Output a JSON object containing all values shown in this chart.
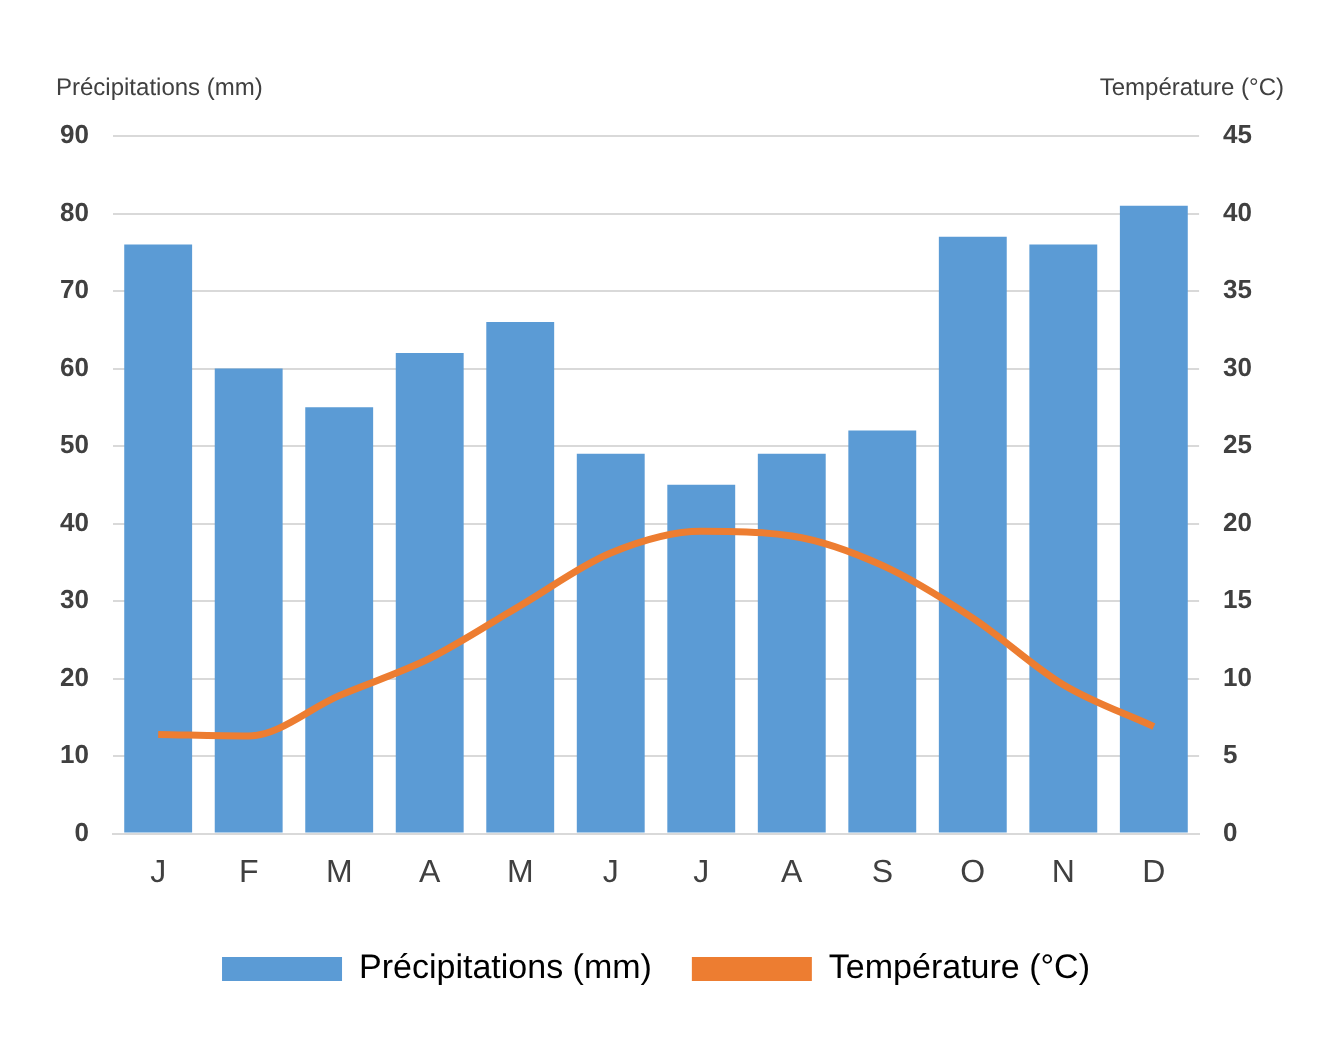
{
  "chart_data": {
    "type": "bar",
    "categories": [
      "J",
      "F",
      "M",
      "A",
      "M",
      "J",
      "J",
      "A",
      "S",
      "O",
      "N",
      "D"
    ],
    "ylabel": "Précipitations (mm)",
    "y2label": "Température (°C)",
    "series": [
      {
        "name": "Précipitations (mm)",
        "color": "#5b9bd5",
        "values": [
          76,
          60,
          55,
          62,
          66,
          49,
          45,
          49,
          52,
          77,
          76,
          81
        ]
      },
      {
        "name": "Température (°C)",
        "type": "line",
        "axis": "y2",
        "color": "#ed7d31",
        "marker": "none",
        "values": [
          6.4,
          6.3,
          8.9,
          11.3,
          14.7,
          18.1,
          19.5,
          19.2,
          17.3,
          13.9,
          9.6,
          6.9
        ]
      }
    ],
    "ylim": [
      0,
      90
    ],
    "yticks": [
      0,
      10,
      20,
      30,
      40,
      50,
      60,
      70,
      80,
      90
    ],
    "y2lim": [
      0,
      45
    ],
    "y2ticks": [
      0,
      5,
      10,
      15,
      20,
      25,
      30,
      35,
      40,
      45
    ],
    "grid": "y",
    "legend": "bottom"
  }
}
